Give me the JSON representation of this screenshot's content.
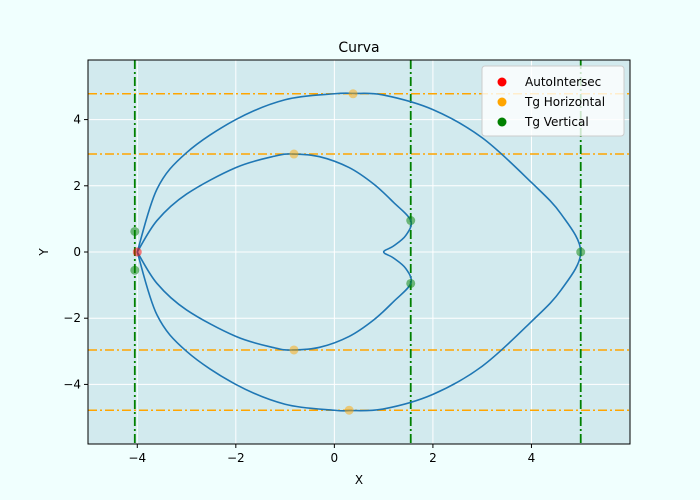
{
  "chart_data": {
    "type": "scatter",
    "title": "Curva",
    "xlabel": "X",
    "ylabel": "Y",
    "xlim": [
      -5,
      6
    ],
    "ylim": [
      -5.8,
      5.8
    ],
    "xticks": [
      -4,
      -2,
      0,
      2,
      4
    ],
    "yticks": [
      -4,
      -2,
      0,
      2,
      4
    ],
    "xtick_labels": [
      "−4",
      "−2",
      "0",
      "2",
      "4"
    ],
    "ytick_labels": [
      "−4",
      "−2",
      "0",
      "2",
      "4"
    ],
    "grid": true,
    "legend_position": "top-right",
    "curve": {
      "color": "#1f77b4",
      "outer_loop": {
        "x": [
          -4.0,
          -3.6,
          -3.0,
          -2.0,
          -1.0,
          0.0,
          0.4,
          1.0,
          2.0,
          3.0,
          4.0,
          4.6,
          5.0,
          4.6,
          4.0,
          3.0,
          2.0,
          1.0,
          0.3,
          0.0,
          -1.0,
          -2.0,
          -3.0,
          -3.6,
          -4.0
        ],
        "y": [
          0.0,
          1.9,
          3.0,
          4.0,
          4.6,
          4.78,
          4.79,
          4.74,
          4.3,
          3.45,
          2.1,
          1.15,
          0.0,
          -1.15,
          -2.1,
          -3.45,
          -4.3,
          -4.74,
          -4.79,
          -4.78,
          -4.6,
          -4.0,
          -3.0,
          -1.9,
          0.0
        ]
      },
      "inner_loop": {
        "x": [
          -4.0,
          -3.6,
          -3.0,
          -2.0,
          -1.2,
          -0.85,
          -0.3,
          0.3,
          0.8,
          1.2,
          1.55,
          1.45,
          1.2,
          1.0,
          1.2,
          1.45,
          1.55,
          1.2,
          0.8,
          0.3,
          -0.3,
          -0.85,
          -1.2,
          -2.0,
          -3.0,
          -3.6,
          -4.0
        ],
        "y": [
          0.0,
          0.95,
          1.75,
          2.55,
          2.9,
          2.96,
          2.88,
          2.55,
          2.05,
          1.5,
          0.95,
          0.5,
          0.18,
          0.0,
          -0.18,
          -0.5,
          -0.95,
          -1.5,
          -2.05,
          -2.55,
          -2.88,
          -2.96,
          -2.9,
          -2.55,
          -1.75,
          -0.95,
          0.0
        ]
      }
    },
    "hlines": {
      "color": "orange",
      "style": "dashdot",
      "y": [
        4.78,
        2.96,
        -2.96,
        -4.78
      ]
    },
    "vlines": {
      "color": "green",
      "style": "dashdot",
      "x": [
        -4.05,
        1.55,
        5.0
      ]
    },
    "series": [
      {
        "name": "AutoIntersec",
        "color": "#ff0000",
        "points": [
          {
            "x": -4.0,
            "y": 0.0
          }
        ]
      },
      {
        "name": "Tg Horizontal",
        "color": "#ffa500",
        "points": [
          {
            "x": 0.38,
            "y": 4.78
          },
          {
            "x": -0.82,
            "y": 2.96
          },
          {
            "x": -0.82,
            "y": -2.96
          },
          {
            "x": 0.3,
            "y": -4.78
          }
        ]
      },
      {
        "name": "Tg Vertical",
        "color": "#008000",
        "points": [
          {
            "x": -4.05,
            "y": 0.62
          },
          {
            "x": -4.05,
            "y": -0.55
          },
          {
            "x": 1.55,
            "y": 0.95
          },
          {
            "x": 1.55,
            "y": -0.95
          },
          {
            "x": 5.0,
            "y": 0.0
          }
        ]
      }
    ],
    "plot_background": "#d2eaee"
  }
}
